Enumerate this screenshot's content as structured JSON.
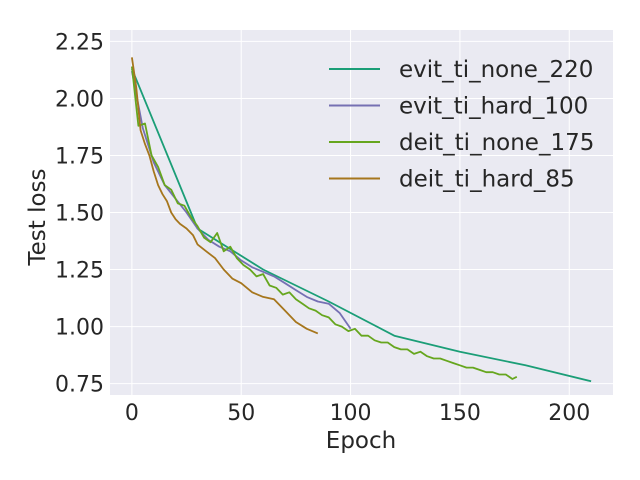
{
  "chart_data": {
    "type": "line",
    "xlabel": "Epoch",
    "ylabel": "Test loss",
    "xlim": [
      -10,
      220
    ],
    "ylim": [
      0.7,
      2.3
    ],
    "x_ticks": [
      0,
      50,
      100,
      150,
      200
    ],
    "y_ticks": [
      0.75,
      1.0,
      1.25,
      1.5,
      1.75,
      2.0,
      2.25
    ],
    "x_tick_labels": [
      "0",
      "50",
      "100",
      "150",
      "200"
    ],
    "y_tick_labels": [
      "0.75",
      "1.00",
      "1.25",
      "1.50",
      "1.75",
      "2.00",
      "2.25"
    ],
    "grid": true,
    "legend_position": "top-right",
    "series": [
      {
        "name": "evit_ti_none_220",
        "color": "#1b9e77",
        "x": [
          0,
          30,
          60,
          90,
          120,
          150,
          180,
          210
        ],
        "y": [
          2.13,
          1.43,
          1.25,
          1.11,
          0.96,
          0.89,
          0.83,
          0.76
        ]
      },
      {
        "name": "evit_ti_hard_100",
        "color": "#7570b3",
        "x": [
          0,
          5,
          10,
          15,
          20,
          25,
          30,
          35,
          40,
          45,
          50,
          55,
          60,
          65,
          70,
          75,
          80,
          85,
          90,
          95,
          100
        ],
        "y": [
          2.12,
          1.87,
          1.72,
          1.62,
          1.56,
          1.5,
          1.43,
          1.38,
          1.35,
          1.33,
          1.29,
          1.26,
          1.24,
          1.22,
          1.19,
          1.16,
          1.13,
          1.11,
          1.1,
          1.06,
          0.99
        ]
      },
      {
        "name": "deit_ti_none_175",
        "color": "#66a61e",
        "x": [
          0,
          3,
          6,
          9,
          12,
          15,
          18,
          21,
          24,
          27,
          30,
          33,
          36,
          39,
          42,
          45,
          48,
          51,
          54,
          57,
          60,
          63,
          66,
          69,
          72,
          75,
          78,
          81,
          84,
          87,
          90,
          93,
          96,
          99,
          102,
          105,
          108,
          111,
          114,
          117,
          120,
          123,
          126,
          129,
          132,
          135,
          138,
          141,
          144,
          147,
          150,
          153,
          156,
          159,
          162,
          165,
          168,
          171,
          174,
          176
        ],
        "y": [
          2.14,
          1.88,
          1.89,
          1.75,
          1.7,
          1.62,
          1.6,
          1.54,
          1.53,
          1.48,
          1.44,
          1.39,
          1.37,
          1.41,
          1.33,
          1.35,
          1.3,
          1.27,
          1.25,
          1.22,
          1.23,
          1.18,
          1.17,
          1.14,
          1.15,
          1.12,
          1.1,
          1.08,
          1.07,
          1.05,
          1.04,
          1.01,
          1.0,
          0.98,
          0.99,
          0.96,
          0.96,
          0.94,
          0.93,
          0.93,
          0.91,
          0.9,
          0.9,
          0.88,
          0.89,
          0.87,
          0.86,
          0.86,
          0.85,
          0.84,
          0.83,
          0.82,
          0.82,
          0.81,
          0.8,
          0.8,
          0.79,
          0.79,
          0.77,
          0.78
        ]
      },
      {
        "name": "deit_ti_hard_85",
        "color": "#a6761d",
        "x": [
          0,
          2,
          4,
          6,
          8,
          10,
          12,
          14,
          16,
          18,
          20,
          22,
          25,
          28,
          30,
          34,
          38,
          42,
          46,
          50,
          55,
          60,
          65,
          70,
          75,
          80,
          85
        ],
        "y": [
          2.18,
          2.05,
          1.86,
          1.8,
          1.75,
          1.68,
          1.62,
          1.58,
          1.55,
          1.5,
          1.47,
          1.45,
          1.43,
          1.4,
          1.36,
          1.33,
          1.3,
          1.25,
          1.21,
          1.19,
          1.15,
          1.13,
          1.12,
          1.07,
          1.02,
          0.99,
          0.97
        ]
      }
    ]
  }
}
